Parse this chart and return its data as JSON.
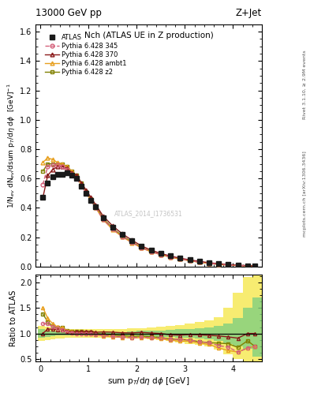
{
  "title_top": "13000 GeV pp",
  "title_right": "Z+Jet",
  "plot_title": "Nch (ATLAS UE in Z production)",
  "xlabel": "sum p$_T$/d$\\eta$ d$\\phi$ [GeV]",
  "ylabel_main": "1/N$_{ev}$ dN$_{ev}$/dsum p$_T$/d$\\eta$ d$\\phi$  [GeV]$^{-1}$",
  "ylabel_ratio": "Ratio to ATLAS",
  "right_label1": "Rivet 3.1.10, ≥ 2.9M events",
  "right_label2": "mcplots.cern.ch [arXiv:1306.3436]",
  "watermark": "ATLAS_2014_I1736531",
  "atlas_x": [
    0.05,
    0.15,
    0.25,
    0.35,
    0.45,
    0.55,
    0.65,
    0.75,
    0.85,
    0.95,
    1.05,
    1.15,
    1.3,
    1.5,
    1.7,
    1.9,
    2.1,
    2.3,
    2.5,
    2.7,
    2.9,
    3.1,
    3.3,
    3.5,
    3.7,
    3.9,
    4.1,
    4.3,
    4.45
  ],
  "atlas_y": [
    0.47,
    0.57,
    0.61,
    0.63,
    0.63,
    0.64,
    0.62,
    0.6,
    0.55,
    0.5,
    0.45,
    0.41,
    0.335,
    0.27,
    0.22,
    0.178,
    0.138,
    0.111,
    0.09,
    0.074,
    0.06,
    0.047,
    0.037,
    0.028,
    0.021,
    0.015,
    0.011,
    0.007,
    0.004
  ],
  "py345_y": [
    0.56,
    0.68,
    0.69,
    0.69,
    0.68,
    0.66,
    0.63,
    0.6,
    0.55,
    0.5,
    0.45,
    0.4,
    0.323,
    0.255,
    0.205,
    0.164,
    0.128,
    0.102,
    0.082,
    0.066,
    0.053,
    0.041,
    0.031,
    0.023,
    0.016,
    0.011,
    0.007,
    0.005,
    0.003
  ],
  "py370_y": [
    0.47,
    0.62,
    0.66,
    0.68,
    0.68,
    0.67,
    0.64,
    0.62,
    0.57,
    0.52,
    0.47,
    0.42,
    0.345,
    0.277,
    0.223,
    0.18,
    0.141,
    0.112,
    0.09,
    0.072,
    0.058,
    0.046,
    0.036,
    0.027,
    0.02,
    0.014,
    0.01,
    0.007,
    0.004
  ],
  "pyambt1_y": [
    0.71,
    0.74,
    0.73,
    0.71,
    0.7,
    0.68,
    0.65,
    0.61,
    0.56,
    0.5,
    0.45,
    0.4,
    0.32,
    0.252,
    0.203,
    0.163,
    0.127,
    0.101,
    0.081,
    0.064,
    0.051,
    0.04,
    0.03,
    0.022,
    0.015,
    0.01,
    0.007,
    0.005,
    0.003
  ],
  "pyz2_y": [
    0.65,
    0.7,
    0.7,
    0.7,
    0.7,
    0.68,
    0.65,
    0.62,
    0.57,
    0.51,
    0.46,
    0.41,
    0.33,
    0.261,
    0.21,
    0.168,
    0.131,
    0.104,
    0.083,
    0.066,
    0.053,
    0.041,
    0.031,
    0.023,
    0.017,
    0.012,
    0.008,
    0.006,
    0.003
  ],
  "color_atlas": "#1a1a1a",
  "color_py345": "#d4607a",
  "color_py370": "#8b1a1a",
  "color_pyambt1": "#e8a020",
  "color_pyz2": "#808000",
  "ratio_py345": [
    1.19,
    1.19,
    1.13,
    1.095,
    1.079,
    1.031,
    1.016,
    1.0,
    1.0,
    1.0,
    1.0,
    0.976,
    0.964,
    0.944,
    0.932,
    0.921,
    0.928,
    0.919,
    0.911,
    0.892,
    0.883,
    0.872,
    0.838,
    0.821,
    0.762,
    0.733,
    0.636,
    0.714,
    0.75
  ],
  "ratio_py370": [
    1.0,
    1.088,
    1.082,
    1.079,
    1.079,
    1.047,
    1.032,
    1.033,
    1.036,
    1.04,
    1.044,
    1.024,
    1.03,
    1.026,
    1.014,
    1.011,
    1.022,
    1.009,
    1.0,
    0.973,
    0.967,
    0.979,
    0.973,
    0.964,
    0.952,
    0.933,
    0.909,
    1.0,
    1.0
  ],
  "ratio_pyambt1": [
    1.51,
    1.298,
    1.197,
    1.127,
    1.111,
    1.063,
    1.048,
    1.017,
    1.018,
    1.0,
    1.0,
    0.976,
    0.955,
    0.933,
    0.923,
    0.916,
    0.92,
    0.91,
    0.9,
    0.865,
    0.85,
    0.851,
    0.811,
    0.786,
    0.714,
    0.667,
    0.636,
    0.714,
    0.75
  ],
  "ratio_pyz2": [
    1.383,
    1.228,
    1.148,
    1.111,
    1.111,
    1.063,
    1.048,
    1.033,
    1.036,
    1.02,
    1.022,
    1.0,
    0.985,
    0.967,
    0.955,
    0.944,
    0.949,
    0.937,
    0.922,
    0.892,
    0.883,
    0.872,
    0.838,
    0.821,
    0.81,
    0.8,
    0.727,
    0.857,
    0.75
  ],
  "band_x_edges": [
    -0.05,
    0.1,
    0.2,
    0.3,
    0.4,
    0.5,
    0.6,
    0.7,
    0.8,
    0.9,
    1.0,
    1.1,
    1.2,
    1.4,
    1.6,
    1.8,
    2.0,
    2.2,
    2.4,
    2.6,
    2.8,
    3.0,
    3.2,
    3.4,
    3.6,
    3.8,
    4.0,
    4.2,
    4.4,
    4.6
  ],
  "band_lo_green": [
    0.92,
    0.94,
    0.95,
    0.96,
    0.96,
    0.97,
    0.97,
    0.97,
    0.97,
    0.97,
    0.97,
    0.97,
    0.97,
    0.97,
    0.97,
    0.96,
    0.95,
    0.95,
    0.94,
    0.93,
    0.92,
    0.91,
    0.9,
    0.88,
    0.85,
    0.8,
    0.75,
    0.7,
    0.55,
    0.5
  ],
  "band_hi_green": [
    1.08,
    1.06,
    1.05,
    1.04,
    1.04,
    1.03,
    1.03,
    1.03,
    1.03,
    1.03,
    1.03,
    1.03,
    1.03,
    1.03,
    1.03,
    1.04,
    1.05,
    1.05,
    1.06,
    1.07,
    1.08,
    1.09,
    1.1,
    1.12,
    1.15,
    1.2,
    1.3,
    1.5,
    1.7,
    2.0
  ],
  "band_lo_yellow": [
    0.85,
    0.87,
    0.88,
    0.9,
    0.9,
    0.91,
    0.92,
    0.92,
    0.92,
    0.92,
    0.92,
    0.92,
    0.92,
    0.92,
    0.91,
    0.9,
    0.9,
    0.88,
    0.87,
    0.85,
    0.83,
    0.8,
    0.78,
    0.75,
    0.68,
    0.6,
    0.5,
    0.4,
    0.3,
    0.25
  ],
  "band_hi_yellow": [
    1.15,
    1.13,
    1.12,
    1.1,
    1.1,
    1.09,
    1.08,
    1.08,
    1.08,
    1.08,
    1.08,
    1.08,
    1.08,
    1.08,
    1.09,
    1.1,
    1.1,
    1.12,
    1.13,
    1.15,
    1.17,
    1.2,
    1.22,
    1.25,
    1.32,
    1.5,
    1.8,
    2.1,
    2.3,
    2.3
  ],
  "ylim_main": [
    0,
    1.65
  ],
  "ylim_ratio": [
    0.45,
    2.15
  ],
  "xlim": [
    -0.1,
    4.6
  ],
  "yticks_main": [
    0.0,
    0.2,
    0.4,
    0.6,
    0.8,
    1.0,
    1.2,
    1.4,
    1.6
  ],
  "yticks_ratio": [
    0.5,
    1.0,
    1.5,
    2.0
  ],
  "xticks": [
    0,
    1,
    2,
    3,
    4
  ]
}
